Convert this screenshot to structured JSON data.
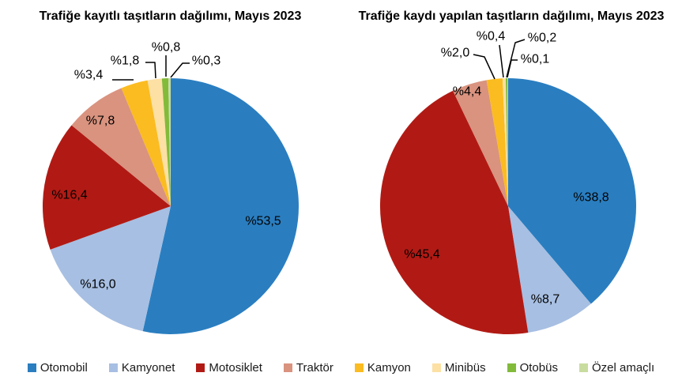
{
  "page": {
    "background": "#ffffff"
  },
  "chart_data": [
    {
      "type": "pie",
      "title": "Trafiğe kayıtlı taşıtların dağılımı, Mayıs 2023",
      "categories": [
        "Otomobil",
        "Kamyonet",
        "Motosiklet",
        "Traktör",
        "Kamyon",
        "Minibüs",
        "Otobüs",
        "Özel amaçlı"
      ],
      "values": [
        53.5,
        16.0,
        16.4,
        7.8,
        3.4,
        1.8,
        0.8,
        0.3
      ],
      "labels": [
        "%53,5",
        "%16,0",
        "%16,4",
        "%7,8",
        "%3,4",
        "%1,8",
        "%0,8",
        "%0,3"
      ],
      "colors": [
        "#2A7EC0",
        "#A7BFE2",
        "#B11A14",
        "#D9937F",
        "#FBBC21",
        "#FCE0A4",
        "#82BB3A",
        "#C9DCA0"
      ],
      "start_angle_deg": 0,
      "direction": "clockwise",
      "label_prefix": "%",
      "decimal_separator": ","
    },
    {
      "type": "pie",
      "title": "Trafiğe kaydı yapılan taşıtların dağılımı, Mayıs 2023",
      "categories": [
        "Otomobil",
        "Kamyonet",
        "Motosiklet",
        "Traktör",
        "Kamyon",
        "Minibüs",
        "Otobüs",
        "Özel amaçlı"
      ],
      "values": [
        38.8,
        8.7,
        45.4,
        4.4,
        2.0,
        0.4,
        0.2,
        0.1
      ],
      "labels": [
        "%38,8",
        "%8,7",
        "%45,4",
        "%4,4",
        "%2,0",
        "%0,4",
        "%0,2",
        "%0,1"
      ],
      "colors": [
        "#2A7EC0",
        "#A7BFE2",
        "#B11A14",
        "#D9937F",
        "#FBBC21",
        "#FCE0A4",
        "#82BB3A",
        "#C9DCA0"
      ],
      "start_angle_deg": 0,
      "direction": "clockwise",
      "label_prefix": "%",
      "decimal_separator": ","
    }
  ],
  "legend": {
    "items": [
      {
        "label": "Otomobil",
        "color": "#2A7EC0"
      },
      {
        "label": "Kamyonet",
        "color": "#A7BFE2"
      },
      {
        "label": "Motosiklet",
        "color": "#B11A14"
      },
      {
        "label": "Traktör",
        "color": "#D9937F"
      },
      {
        "label": "Kamyon",
        "color": "#FBBC21"
      },
      {
        "label": "Minibüs",
        "color": "#FCE0A4"
      },
      {
        "label": "Otobüs",
        "color": "#82BB3A"
      },
      {
        "label": "Özel amaçlı",
        "color": "#C9DCA0"
      }
    ]
  }
}
